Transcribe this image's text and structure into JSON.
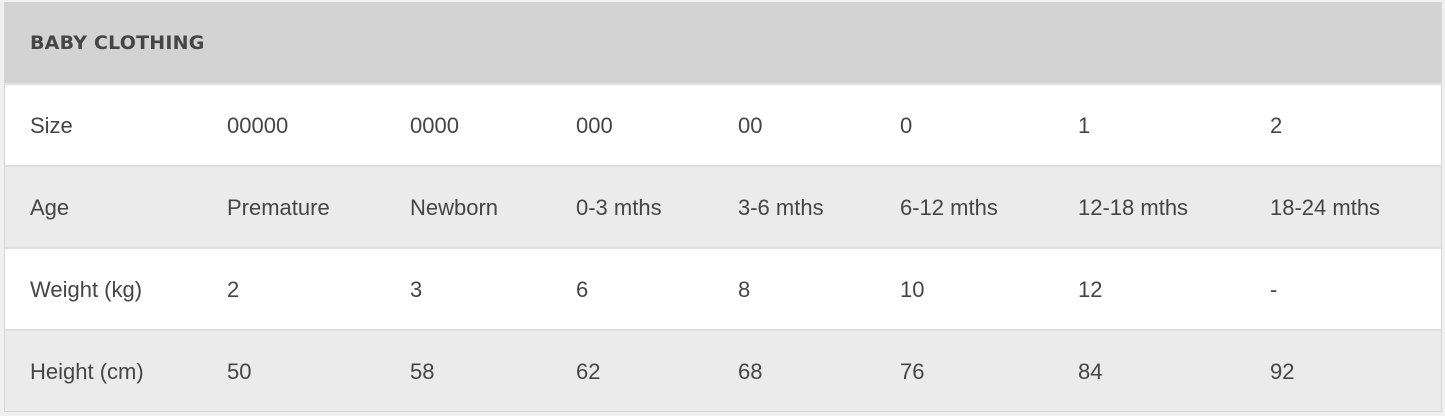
{
  "title": "BABY CLOTHING",
  "colors": {
    "header_bg": "#d3d3d3",
    "alt_row_bg": "#ebebeb",
    "text": "#454545"
  },
  "rows": [
    {
      "label": "Size",
      "values": [
        "00000",
        "0000",
        "000",
        "00",
        "0",
        "1",
        "2"
      ]
    },
    {
      "label": "Age",
      "values": [
        "Premature",
        "Newborn",
        "0-3 mths",
        "3-6 mths",
        "6-12 mths",
        "12-18 mths",
        "18-24 mths"
      ]
    },
    {
      "label": "Weight (kg)",
      "values": [
        "2",
        "3",
        "6",
        "8",
        "10",
        "12",
        "-"
      ]
    },
    {
      "label": "Height (cm)",
      "values": [
        "50",
        "58",
        "62",
        "68",
        "76",
        "84",
        "92"
      ]
    }
  ]
}
